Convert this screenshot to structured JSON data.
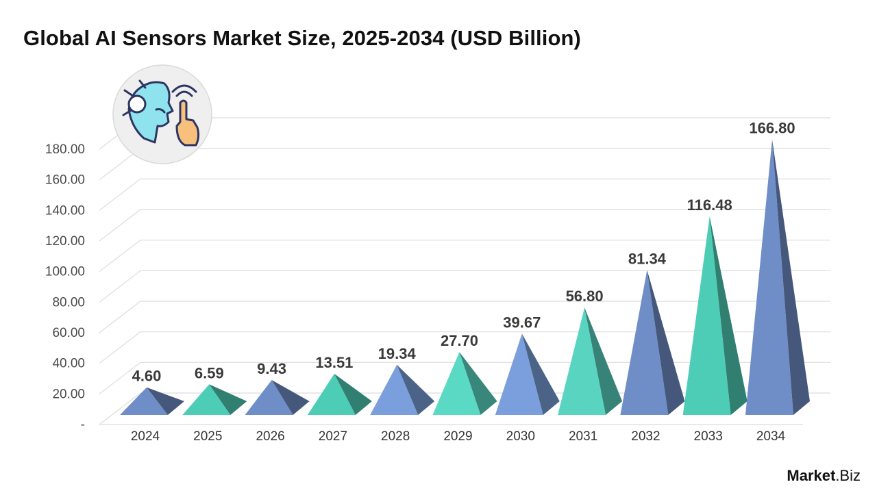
{
  "chart_data": {
    "type": "bar",
    "title": "Global AI Sensors Market Size, 2025-2034 (USD Billion)",
    "xlabel": "",
    "ylabel": "",
    "categories": [
      "2024",
      "2025",
      "2026",
      "2027",
      "2028",
      "2029",
      "2030",
      "2031",
      "2032",
      "2033",
      "2034"
    ],
    "values": [
      4.6,
      6.59,
      9.43,
      13.51,
      19.34,
      27.7,
      39.67,
      56.8,
      81.34,
      116.48,
      166.8
    ],
    "value_labels": [
      "4.60",
      "6.59",
      "9.43",
      "13.51",
      "19.34",
      "27.70",
      "39.67",
      "56.80",
      "81.34",
      "116.48",
      "166.80"
    ],
    "ylim": [
      0,
      180
    ],
    "yticks": [
      0,
      20,
      40,
      60,
      80,
      100,
      120,
      140,
      160,
      180
    ],
    "ytick_labels": [
      "-",
      "20.00",
      "40.00",
      "60.00",
      "80.00",
      "100.00",
      "120.00",
      "140.00",
      "160.00",
      "180.00"
    ],
    "grid": true,
    "mark_shape": "pyramid",
    "colors": [
      "#6f8ec8",
      "#4ecdb6",
      "#6f8ec8",
      "#4ecdb6",
      "#7b9fdc",
      "#5ad9c5",
      "#7b9fdc",
      "#58d4c0",
      "#6f8ec8",
      "#4ecdb6",
      "#6f8ec8"
    ]
  },
  "brand": {
    "name": "Market",
    "suffix": ".Biz"
  },
  "icon": "ai-sensor-icon"
}
